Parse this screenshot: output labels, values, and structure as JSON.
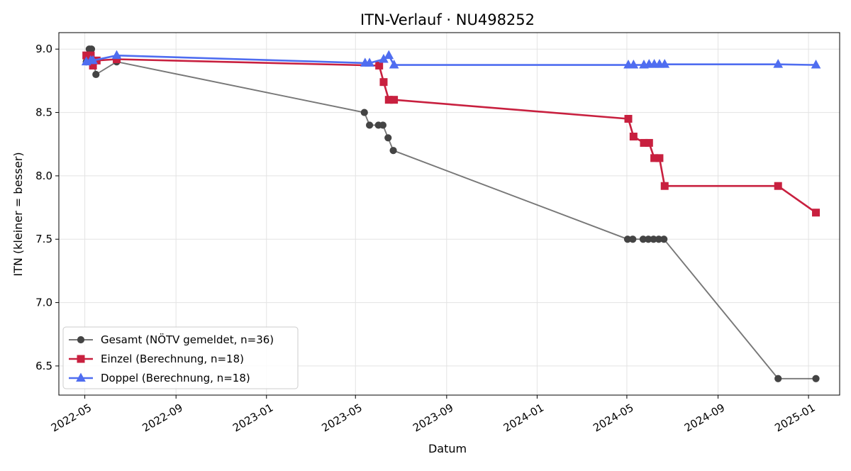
{
  "chart_data": {
    "type": "line",
    "title": "ITN-Verlauf · NU498252",
    "xlabel": "Datum",
    "ylabel": "ITN  (kleiner = besser)",
    "x_axis_type": "date",
    "xlim": [
      "2022-03-27",
      "2025-02-12"
    ],
    "ylim": [
      6.27,
      9.13
    ],
    "x_ticks": [
      "2022-05",
      "2022-09",
      "2023-01",
      "2023-05",
      "2023-09",
      "2024-01",
      "2024-05",
      "2024-09",
      "2025-01"
    ],
    "y_ticks": [
      "6.5",
      "7.0",
      "7.5",
      "8.0",
      "8.5",
      "9.0"
    ],
    "grid": true,
    "legend_position": "lower-left",
    "series": [
      {
        "name": "Gesamt (NÖTV gemeldet, n=36)",
        "color": "#555555",
        "marker": "circle",
        "points": [
          {
            "x": "2022-05-03",
            "y": 8.9
          },
          {
            "x": "2022-05-07",
            "y": 9.0
          },
          {
            "x": "2022-05-10",
            "y": 9.0
          },
          {
            "x": "2022-05-16",
            "y": 8.8
          },
          {
            "x": "2022-06-13",
            "y": 8.9
          },
          {
            "x": "2023-05-13",
            "y": 8.5
          },
          {
            "x": "2023-05-20",
            "y": 8.4
          },
          {
            "x": "2023-06-01",
            "y": 8.4
          },
          {
            "x": "2023-06-07",
            "y": 8.4
          },
          {
            "x": "2023-06-14",
            "y": 8.3
          },
          {
            "x": "2023-06-21",
            "y": 8.2
          },
          {
            "x": "2024-05-02",
            "y": 7.5
          },
          {
            "x": "2024-05-09",
            "y": 7.5
          },
          {
            "x": "2024-05-23",
            "y": 7.5
          },
          {
            "x": "2024-05-30",
            "y": 7.5
          },
          {
            "x": "2024-06-06",
            "y": 7.5
          },
          {
            "x": "2024-06-13",
            "y": 7.5
          },
          {
            "x": "2024-06-20",
            "y": 7.5
          },
          {
            "x": "2024-11-21",
            "y": 6.4
          },
          {
            "x": "2025-01-11",
            "y": 6.4
          }
        ]
      },
      {
        "name": "Einzel (Berechnung, n=18)",
        "color": "#c8203f",
        "marker": "square",
        "points": [
          {
            "x": "2022-05-03",
            "y": 8.95
          },
          {
            "x": "2022-05-09",
            "y": 8.95
          },
          {
            "x": "2022-05-12",
            "y": 8.87
          },
          {
            "x": "2022-05-17",
            "y": 8.91
          },
          {
            "x": "2022-06-13",
            "y": 8.92
          },
          {
            "x": "2023-06-02",
            "y": 8.87
          },
          {
            "x": "2023-06-08",
            "y": 8.74
          },
          {
            "x": "2023-06-15",
            "y": 8.6
          },
          {
            "x": "2023-06-22",
            "y": 8.6
          },
          {
            "x": "2024-05-03",
            "y": 8.45
          },
          {
            "x": "2024-05-10",
            "y": 8.31
          },
          {
            "x": "2024-05-24",
            "y": 8.26
          },
          {
            "x": "2024-05-31",
            "y": 8.26
          },
          {
            "x": "2024-06-07",
            "y": 8.14
          },
          {
            "x": "2024-06-14",
            "y": 8.14
          },
          {
            "x": "2024-06-21",
            "y": 7.92
          },
          {
            "x": "2024-11-21",
            "y": 7.92
          },
          {
            "x": "2025-01-11",
            "y": 7.71
          }
        ]
      },
      {
        "name": "Doppel (Berechnung, n=18)",
        "color": "#4f6df0",
        "marker": "triangle",
        "points": [
          {
            "x": "2022-05-03",
            "y": 8.9
          },
          {
            "x": "2022-05-09",
            "y": 8.91
          },
          {
            "x": "2022-05-12",
            "y": 8.91
          },
          {
            "x": "2022-06-13",
            "y": 8.95
          },
          {
            "x": "2023-05-14",
            "y": 8.89
          },
          {
            "x": "2023-05-20",
            "y": 8.89
          },
          {
            "x": "2023-06-08",
            "y": 8.92
          },
          {
            "x": "2023-06-15",
            "y": 8.95
          },
          {
            "x": "2023-06-22",
            "y": 8.875
          },
          {
            "x": "2024-05-03",
            "y": 8.875
          },
          {
            "x": "2024-05-10",
            "y": 8.875
          },
          {
            "x": "2024-05-24",
            "y": 8.875
          },
          {
            "x": "2024-05-31",
            "y": 8.88
          },
          {
            "x": "2024-06-07",
            "y": 8.88
          },
          {
            "x": "2024-06-14",
            "y": 8.88
          },
          {
            "x": "2024-06-21",
            "y": 8.88
          },
          {
            "x": "2024-11-21",
            "y": 8.88
          },
          {
            "x": "2025-01-11",
            "y": 8.875
          }
        ]
      }
    ]
  }
}
